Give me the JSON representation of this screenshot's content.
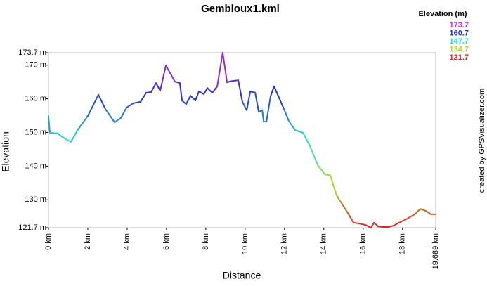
{
  "chart_data": {
    "type": "line",
    "title": "Gembloux1.kml",
    "x_label": "Distance",
    "y_label": "Elevation",
    "credit": "created by GPSVisualizer.com",
    "legend": {
      "title": "Elevation (m)",
      "items": [
        {
          "value": 173.7,
          "color": "#dd22dd"
        },
        {
          "value": 160.7,
          "color": "#2233cc"
        },
        {
          "value": 147.7,
          "color": "#22dddd"
        },
        {
          "value": 134.7,
          "color": "#aadd22"
        },
        {
          "value": 121.7,
          "color": "#dd2222"
        }
      ]
    },
    "x": [
      0,
      0.07,
      0.46,
      0.82,
      1.14,
      1.5,
      2.0,
      2.54,
      2.89,
      3.36,
      3.68,
      3.97,
      4.32,
      4.68,
      4.97,
      5.22,
      5.47,
      5.68,
      5.97,
      6.43,
      6.68,
      6.79,
      7.0,
      7.22,
      7.47,
      7.65,
      7.9,
      8.08,
      8.33,
      8.58,
      8.86,
      9.08,
      9.33,
      9.65,
      9.86,
      10.08,
      10.26,
      10.51,
      10.69,
      10.87,
      10.94,
      11.08,
      11.29,
      11.47,
      11.97,
      12.22,
      12.54,
      12.94,
      13.3,
      13.69,
      14.05,
      14.33,
      14.65,
      14.9,
      15.22,
      15.51,
      15.83,
      16.12,
      16.4,
      16.55,
      16.76,
      17.05,
      17.26,
      17.55,
      17.83,
      18.19,
      18.62,
      18.91,
      19.19,
      19.44,
      19.689
    ],
    "values": [
      154.9,
      149.9,
      149.7,
      148.2,
      147.2,
      150.9,
      154.9,
      161.2,
      157.0,
      153.0,
      154.3,
      157.4,
      158.7,
      159.1,
      161.8,
      162.0,
      164.7,
      162.4,
      169.9,
      165.1,
      164.7,
      159.5,
      158.4,
      160.9,
      159.5,
      162.2,
      161.4,
      163.2,
      161.8,
      163.7,
      173.7,
      164.9,
      165.3,
      165.5,
      159.1,
      156.6,
      162.2,
      161.8,
      156.1,
      156.6,
      153.2,
      153.2,
      160.7,
      163.7,
      157.0,
      153.4,
      150.7,
      149.9,
      145.9,
      140.3,
      137.6,
      137.2,
      131.3,
      129.0,
      126.1,
      123.2,
      122.9,
      122.5,
      121.7,
      123.2,
      122.1,
      121.9,
      121.9,
      122.3,
      123.2,
      124.2,
      125.7,
      127.3,
      126.7,
      125.7,
      125.7
    ],
    "xlim": [
      0,
      19.689
    ],
    "ylim": [
      121.7,
      173.7
    ],
    "xticks": [
      {
        "value": 0,
        "label": "0 km"
      },
      {
        "value": 2,
        "label": "2 km"
      },
      {
        "value": 4,
        "label": "4 km"
      },
      {
        "value": 6,
        "label": "6 km"
      },
      {
        "value": 8,
        "label": "8 km"
      },
      {
        "value": 10,
        "label": "10 km"
      },
      {
        "value": 12,
        "label": "12 km"
      },
      {
        "value": 14,
        "label": "14 km"
      },
      {
        "value": 16,
        "label": "16 km"
      },
      {
        "value": 18,
        "label": "18 km"
      },
      {
        "value": 19.689,
        "label": "19.689 km"
      }
    ],
    "yticks": [
      {
        "value": 121.7,
        "label": "121.7 m"
      },
      {
        "value": 130,
        "label": "130 m"
      },
      {
        "value": 140,
        "label": "140 m"
      },
      {
        "value": 150,
        "label": "150 m"
      },
      {
        "value": 160,
        "label": "160 m"
      },
      {
        "value": 170,
        "label": "170 m"
      },
      {
        "value": 173.7,
        "label": "173.7 m"
      }
    ]
  }
}
